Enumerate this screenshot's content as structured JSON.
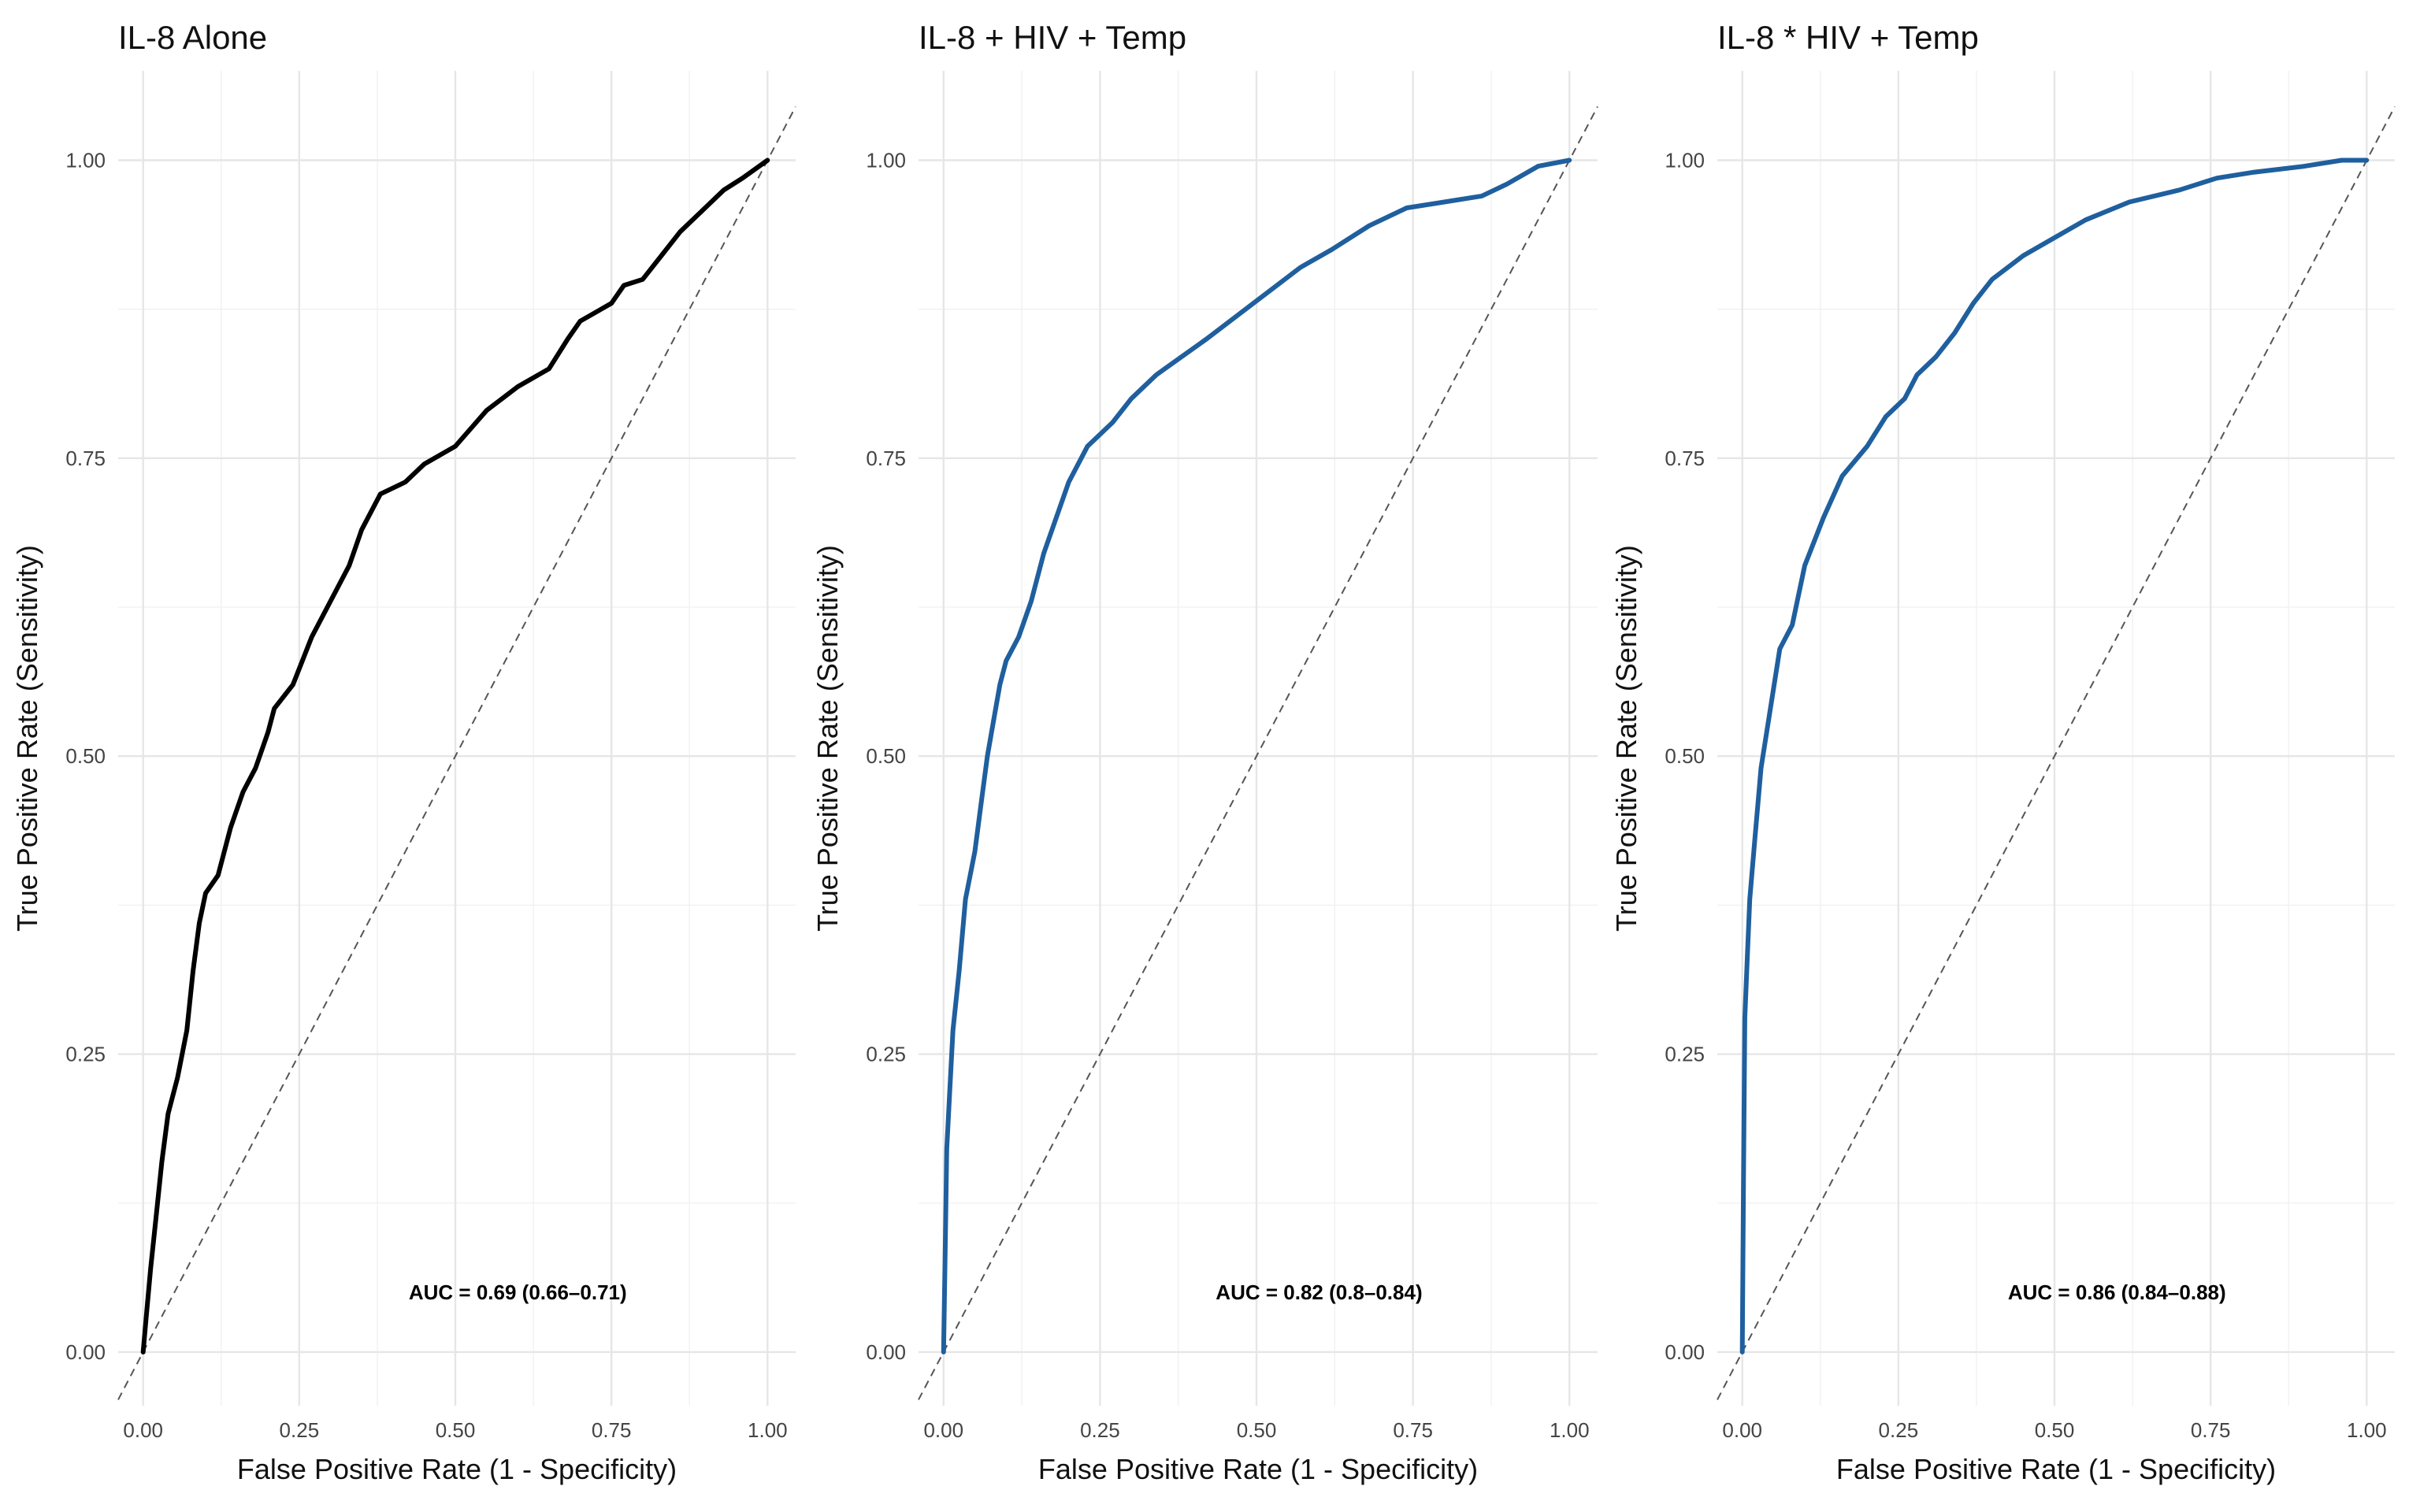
{
  "chart_data": [
    {
      "type": "line",
      "title": "IL-8 Alone",
      "xlabel": "False Positive Rate (1 - Specificity)",
      "ylabel": "True Positive Rate (Sensitivity)",
      "xlim": [
        0,
        1
      ],
      "ylim": [
        0,
        1
      ],
      "x_ticks": [
        "0.00",
        "0.25",
        "0.50",
        "0.75",
        "1.00"
      ],
      "y_ticks": [
        "0.00",
        "0.25",
        "0.50",
        "0.75",
        "1.00"
      ],
      "grid": true,
      "reference_line": "diagonal dashed",
      "annotation": "AUC = 0.69 (0.66–0.71)",
      "series": [
        {
          "color": "#000000",
          "points": [
            [
              0,
              0
            ],
            [
              0.005,
              0.03
            ],
            [
              0.012,
              0.07
            ],
            [
              0.02,
              0.11
            ],
            [
              0.03,
              0.16
            ],
            [
              0.04,
              0.2
            ],
            [
              0.055,
              0.23
            ],
            [
              0.07,
              0.27
            ],
            [
              0.08,
              0.32
            ],
            [
              0.09,
              0.36
            ],
            [
              0.1,
              0.385
            ],
            [
              0.12,
              0.4
            ],
            [
              0.14,
              0.44
            ],
            [
              0.16,
              0.47
            ],
            [
              0.18,
              0.49
            ],
            [
              0.2,
              0.52
            ],
            [
              0.21,
              0.54
            ],
            [
              0.24,
              0.56
            ],
            [
              0.27,
              0.6
            ],
            [
              0.3,
              0.63
            ],
            [
              0.33,
              0.66
            ],
            [
              0.35,
              0.69
            ],
            [
              0.38,
              0.72
            ],
            [
              0.42,
              0.73
            ],
            [
              0.45,
              0.745
            ],
            [
              0.5,
              0.76
            ],
            [
              0.55,
              0.79
            ],
            [
              0.6,
              0.81
            ],
            [
              0.65,
              0.825
            ],
            [
              0.68,
              0.85
            ],
            [
              0.7,
              0.865
            ],
            [
              0.75,
              0.88
            ],
            [
              0.77,
              0.895
            ],
            [
              0.8,
              0.9
            ],
            [
              0.83,
              0.92
            ],
            [
              0.86,
              0.94
            ],
            [
              0.9,
              0.96
            ],
            [
              0.93,
              0.975
            ],
            [
              0.96,
              0.985
            ],
            [
              1.0,
              1.0
            ]
          ]
        }
      ]
    },
    {
      "type": "line",
      "title": "IL-8 + HIV + Temp",
      "xlabel": "False Positive Rate (1 - Specificity)",
      "ylabel": "True Positive Rate (Sensitivity)",
      "xlim": [
        0,
        1
      ],
      "ylim": [
        0,
        1
      ],
      "x_ticks": [
        "0.00",
        "0.25",
        "0.50",
        "0.75",
        "1.00"
      ],
      "y_ticks": [
        "0.00",
        "0.25",
        "0.50",
        "0.75",
        "1.00"
      ],
      "grid": true,
      "reference_line": "diagonal dashed",
      "annotation": "AUC = 0.82 (0.8–0.84)",
      "series": [
        {
          "color": "#1f5f9e",
          "points": [
            [
              0,
              0
            ],
            [
              0.003,
              0.1
            ],
            [
              0.005,
              0.17
            ],
            [
              0.01,
              0.22
            ],
            [
              0.015,
              0.27
            ],
            [
              0.025,
              0.32
            ],
            [
              0.035,
              0.38
            ],
            [
              0.05,
              0.42
            ],
            [
              0.06,
              0.46
            ],
            [
              0.07,
              0.5
            ],
            [
              0.08,
              0.53
            ],
            [
              0.09,
              0.56
            ],
            [
              0.1,
              0.58
            ],
            [
              0.12,
              0.6
            ],
            [
              0.14,
              0.63
            ],
            [
              0.16,
              0.67
            ],
            [
              0.18,
              0.7
            ],
            [
              0.2,
              0.73
            ],
            [
              0.23,
              0.76
            ],
            [
              0.27,
              0.78
            ],
            [
              0.3,
              0.8
            ],
            [
              0.34,
              0.82
            ],
            [
              0.38,
              0.835
            ],
            [
              0.42,
              0.85
            ],
            [
              0.47,
              0.87
            ],
            [
              0.52,
              0.89
            ],
            [
              0.57,
              0.91
            ],
            [
              0.62,
              0.925
            ],
            [
              0.68,
              0.945
            ],
            [
              0.74,
              0.96
            ],
            [
              0.8,
              0.965
            ],
            [
              0.86,
              0.97
            ],
            [
              0.9,
              0.98
            ],
            [
              0.95,
              0.995
            ],
            [
              1.0,
              1.0
            ]
          ]
        }
      ]
    },
    {
      "type": "line",
      "title": "IL-8 * HIV +  Temp",
      "xlabel": "False Positive Rate (1 - Specificity)",
      "ylabel": "True Positive Rate (Sensitivity)",
      "xlim": [
        0,
        1
      ],
      "ylim": [
        0,
        1
      ],
      "x_ticks": [
        "0.00",
        "0.25",
        "0.50",
        "0.75",
        "1.00"
      ],
      "y_ticks": [
        "0.00",
        "0.25",
        "0.50",
        "0.75",
        "1.00"
      ],
      "grid": true,
      "reference_line": "diagonal dashed",
      "annotation": "AUC = 0.86 (0.84–0.88)",
      "series": [
        {
          "color": "#1f5f9e",
          "points": [
            [
              0,
              0
            ],
            [
              0.002,
              0.15
            ],
            [
              0.004,
              0.28
            ],
            [
              0.008,
              0.33
            ],
            [
              0.012,
              0.38
            ],
            [
              0.02,
              0.43
            ],
            [
              0.03,
              0.49
            ],
            [
              0.045,
              0.54
            ],
            [
              0.06,
              0.59
            ],
            [
              0.08,
              0.61
            ],
            [
              0.1,
              0.66
            ],
            [
              0.13,
              0.7
            ],
            [
              0.16,
              0.735
            ],
            [
              0.2,
              0.76
            ],
            [
              0.23,
              0.785
            ],
            [
              0.26,
              0.8
            ],
            [
              0.28,
              0.82
            ],
            [
              0.31,
              0.835
            ],
            [
              0.34,
              0.855
            ],
            [
              0.37,
              0.88
            ],
            [
              0.4,
              0.9
            ],
            [
              0.45,
              0.92
            ],
            [
              0.5,
              0.935
            ],
            [
              0.55,
              0.95
            ],
            [
              0.62,
              0.965
            ],
            [
              0.7,
              0.975
            ],
            [
              0.76,
              0.985
            ],
            [
              0.82,
              0.99
            ],
            [
              0.9,
              0.995
            ],
            [
              0.96,
              1.0
            ],
            [
              1.0,
              1.0
            ]
          ]
        }
      ]
    }
  ]
}
